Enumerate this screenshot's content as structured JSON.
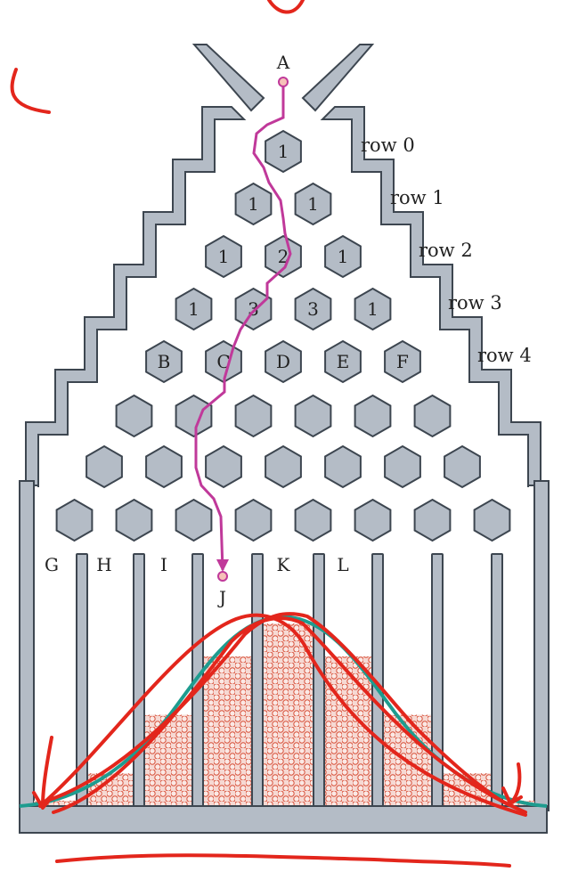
{
  "labels": {
    "start": "A",
    "end": "J",
    "rows": [
      "row 0",
      "row 1",
      "row 2",
      "row 3",
      "row 4"
    ],
    "hex_row0": [
      "1"
    ],
    "hex_row1": [
      "1",
      "1"
    ],
    "hex_row2": [
      "1",
      "2",
      "1"
    ],
    "hex_row3": [
      "1",
      "3",
      "3",
      "1"
    ],
    "hex_row4": [
      "B",
      "C",
      "D",
      "E",
      "F"
    ],
    "bins": [
      "G",
      "H",
      "I",
      "",
      "K",
      "L",
      "",
      "",
      ""
    ]
  },
  "bin_fill_levels": [
    0.03,
    0.18,
    0.5,
    0.82,
    1.0,
    0.82,
    0.5,
    0.18,
    0.03
  ],
  "colors": {
    "wall": "#b4bcc6",
    "wall_stroke": "#3d4650",
    "path": "#c0399a",
    "beads": "#d8513a",
    "beads_bg": "#f6d9d3",
    "annotation": "#e3261c",
    "normal_curve": "#1e9c8f"
  }
}
